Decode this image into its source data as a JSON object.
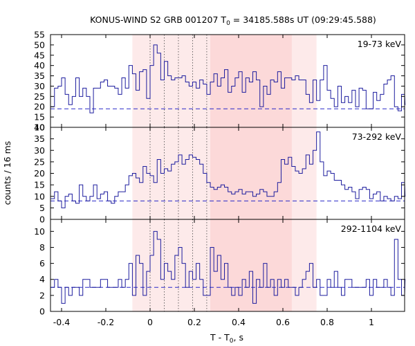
{
  "chart_data": {
    "type": "line",
    "title_prefix": "KONUS-WIND S2 GRB 001207 T",
    "title_sub": "0",
    "title_suffix": " = 34185.588s UT (09:29:45.588)",
    "ylabel": "counts / 16 ms",
    "xlabel_prefix": "T - T",
    "xlabel_sub": "0",
    "xlabel_suffix": ", s",
    "xlim": [
      -0.45,
      1.15
    ],
    "x_ticks": [
      -0.4,
      -0.2,
      0,
      0.2,
      0.4,
      0.6,
      0.8,
      1
    ],
    "x_tick_labels": [
      "-0.4",
      "-0.2",
      "0",
      "0.2",
      "0.4",
      "0.6",
      "0.8",
      "1"
    ],
    "bin_width": 0.016,
    "bin_start": -0.448,
    "shaded_regions": [
      {
        "from": -0.08,
        "to": 0.752,
        "color": "#fdeaea"
      },
      {
        "from": 0.272,
        "to": 0.64,
        "color": "#fcd9d9"
      }
    ],
    "vertical_markers": [
      0,
      0.064,
      0.128,
      0.192,
      0.256
    ],
    "line_color": "#1c1c9e",
    "background_color": "#2828c8",
    "panels": [
      {
        "label": "19-73 keV",
        "ylim": [
          10,
          55
        ],
        "y_ticks": [
          10,
          15,
          20,
          25,
          30,
          35,
          40,
          45,
          50,
          55
        ],
        "background": 19,
        "counts": [
          20,
          29,
          30,
          34,
          26,
          21,
          25,
          34,
          25,
          29,
          25,
          17,
          29,
          29,
          32,
          33,
          30,
          30,
          29,
          26,
          34,
          29,
          40,
          36,
          28,
          37,
          38,
          24,
          40,
          50,
          46,
          33,
          42,
          35,
          33,
          34,
          34,
          35,
          32,
          30,
          32,
          29,
          33,
          31,
          26,
          32,
          36,
          30,
          34,
          38,
          27,
          30,
          34,
          37,
          27,
          34,
          32,
          37,
          33,
          20,
          30,
          26,
          33,
          32,
          37,
          29,
          34,
          34,
          33,
          35,
          33,
          33,
          26,
          22,
          33,
          23,
          33,
          40,
          28,
          24,
          20,
          30,
          22,
          25,
          22,
          28,
          20,
          29,
          28,
          19,
          19,
          27,
          23,
          26,
          31,
          33,
          35,
          20,
          18,
          26,
          21
        ]
      },
      {
        "label": "73-292 keV",
        "ylim": [
          0,
          40
        ],
        "y_ticks": [
          0,
          5,
          10,
          15,
          20,
          25,
          30,
          35,
          40
        ],
        "background": 8,
        "counts": [
          9,
          12,
          8,
          5,
          10,
          11,
          8,
          7,
          15,
          10,
          8,
          10,
          15,
          9,
          11,
          12,
          8,
          7,
          10,
          12,
          12,
          15,
          19,
          20,
          18,
          16,
          23,
          20,
          19,
          16,
          26,
          20,
          22,
          21,
          24,
          25,
          28,
          24,
          26,
          28,
          27,
          26,
          24,
          20,
          16,
          14,
          13,
          14,
          15,
          14,
          12,
          11,
          12,
          13,
          11,
          12,
          12,
          10,
          11,
          13,
          12,
          10,
          10,
          12,
          16,
          26,
          24,
          27,
          23,
          21,
          20,
          22,
          28,
          24,
          30,
          38,
          25,
          19,
          21,
          20,
          17,
          17,
          15,
          13,
          14,
          12,
          9,
          13,
          14,
          13,
          9,
          11,
          12,
          8,
          10,
          9,
          8,
          10,
          9,
          16,
          10
        ]
      },
      {
        "label": "292-1104 keV",
        "ylim": [
          0,
          11.5
        ],
        "y_ticks": [
          0,
          2,
          4,
          6,
          8,
          10
        ],
        "y_tick_labels": [
          "0",
          "2",
          "4",
          "6",
          "8",
          "10"
        ],
        "background": 3,
        "counts": [
          3,
          4,
          3,
          1,
          3,
          2,
          3,
          3,
          2,
          4,
          4,
          3,
          3,
          3,
          4,
          4,
          3,
          3,
          3,
          4,
          3,
          4,
          6,
          2,
          7,
          6,
          2,
          5,
          7,
          10,
          9,
          4,
          6,
          5,
          4,
          7,
          8,
          6,
          3,
          5,
          4,
          6,
          4,
          2,
          2,
          8,
          5,
          7,
          4,
          6,
          3,
          2,
          3,
          2,
          4,
          3,
          5,
          1,
          4,
          3,
          6,
          3,
          4,
          2,
          4,
          3,
          4,
          3,
          3,
          2,
          3,
          4,
          5,
          6,
          3,
          4,
          2,
          2,
          4,
          3,
          5,
          3,
          2,
          4,
          4,
          3,
          3,
          3,
          3,
          4,
          2,
          4,
          3,
          3,
          4,
          3,
          2,
          9,
          4,
          2,
          4
        ]
      }
    ]
  }
}
